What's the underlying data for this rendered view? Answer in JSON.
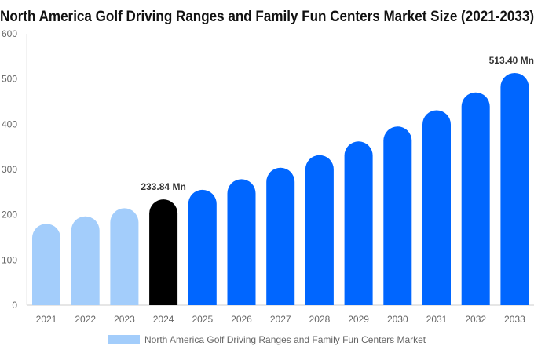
{
  "chart_data": {
    "type": "bar",
    "title": "North America Golf Driving Ranges and Family Fun Centers Market Size (2021-2033)",
    "categories": [
      "2021",
      "2022",
      "2023",
      "2024",
      "2025",
      "2026",
      "2027",
      "2028",
      "2029",
      "2030",
      "2031",
      "2032",
      "2033"
    ],
    "series": [
      {
        "name": "North America Golf Driving Ranges and Family Fun Centers Market",
        "values": [
          180.0,
          196.4,
          214.3,
          233.84,
          255.2,
          278.5,
          303.9,
          331.7,
          362.0,
          395.0,
          431.0,
          470.4,
          513.4
        ]
      }
    ],
    "data_labels": {
      "3": "233.84 Mn",
      "12": "513.40 Mn"
    },
    "ylim": [
      0,
      600
    ],
    "yticks": [
      "0",
      "100",
      "200",
      "300",
      "400",
      "500",
      "600"
    ],
    "grid": false,
    "legend_position": "bottom",
    "colors": {
      "historical": "#a3cdfb",
      "current": "#000000",
      "forecast": "#0066ff"
    }
  }
}
